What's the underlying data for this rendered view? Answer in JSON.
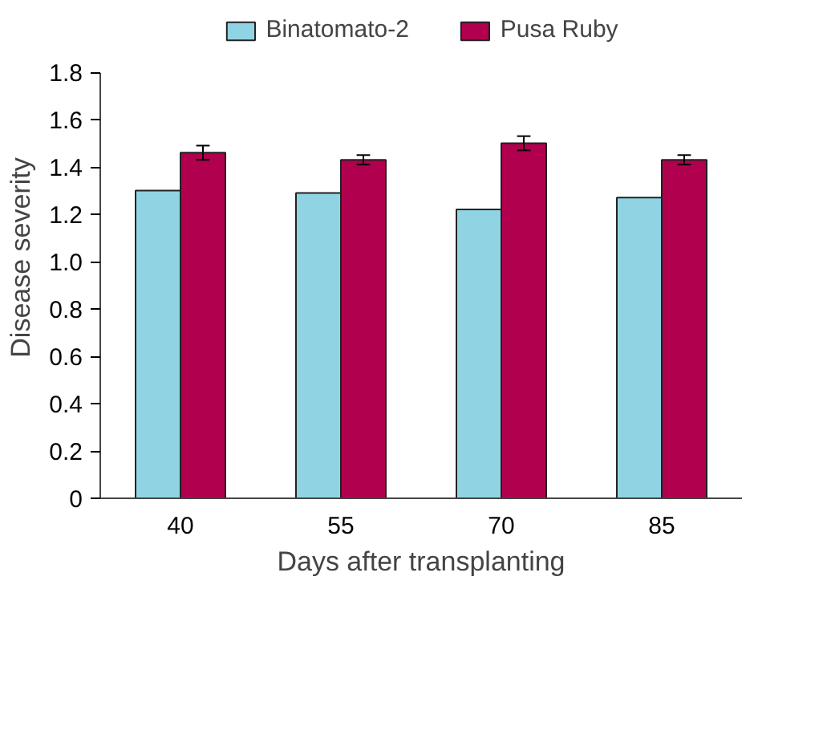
{
  "chart_data": {
    "type": "bar",
    "xlabel": "Days after transplanting",
    "ylabel": "Disease severity",
    "categories": [
      "40",
      "55",
      "70",
      "85"
    ],
    "series": [
      {
        "name": "Binatomato-2",
        "color": "#90d4e4",
        "values": [
          1.3,
          1.29,
          1.22,
          1.27
        ]
      },
      {
        "name": "Pusa Ruby",
        "color": "#b0004e",
        "values": [
          1.46,
          1.43,
          1.5,
          1.43
        ],
        "errors": [
          0.03,
          0.02,
          0.03,
          0.02
        ]
      }
    ],
    "ylim": [
      0,
      1.8
    ],
    "yticks": [
      0,
      {
        "value": 0.2,
        "label": "0.2"
      },
      {
        "value": 0.4,
        "label": "0.4"
      },
      {
        "value": 0.6,
        "label": "0.6"
      },
      {
        "value": 0.8,
        "label": "0.8"
      },
      {
        "value": 1.0,
        "label": "1.0"
      },
      {
        "value": 1.2,
        "label": "1.2"
      },
      {
        "value": 1.4,
        "label": "1.4"
      },
      {
        "value": 1.6,
        "label": "1.6"
      },
      {
        "value": 1.8,
        "label": "1.8"
      }
    ],
    "grid": false,
    "legend": "top"
  }
}
